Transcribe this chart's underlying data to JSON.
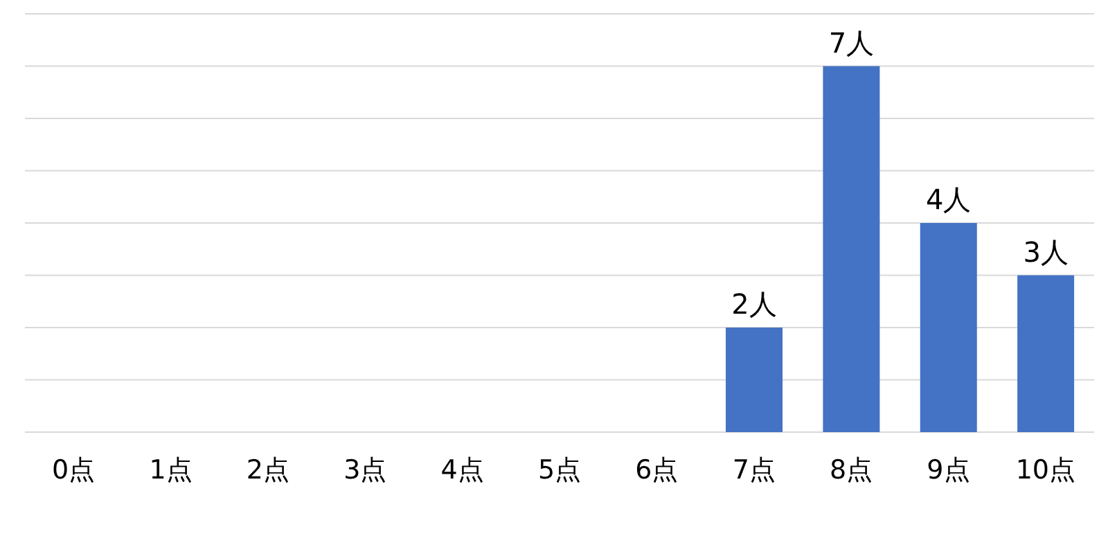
{
  "chart_data": {
    "type": "bar",
    "categories": [
      "0点",
      "1点",
      "2点",
      "3点",
      "4点",
      "5点",
      "6点",
      "7点",
      "8点",
      "9点",
      "10点"
    ],
    "values": [
      0,
      0,
      0,
      0,
      0,
      0,
      0,
      2,
      7,
      4,
      3
    ],
    "value_labels": [
      null,
      null,
      null,
      null,
      null,
      null,
      null,
      "2人",
      "7人",
      "4人",
      "3人"
    ],
    "color": "#4472c4",
    "ylim": [
      0,
      8
    ],
    "yticks": [
      {
        "value": 0,
        "label": null
      },
      {
        "value": 1,
        "label": null
      },
      {
        "value": 2,
        "label": null
      },
      {
        "value": 3,
        "label": null
      },
      {
        "value": 4,
        "label": null
      },
      {
        "value": 5,
        "label": null
      },
      {
        "value": 6,
        "label": null
      },
      {
        "value": 7,
        "label": null
      },
      {
        "value": 8,
        "label": null
      }
    ],
    "grid": "y",
    "tick_labels": "x"
  }
}
